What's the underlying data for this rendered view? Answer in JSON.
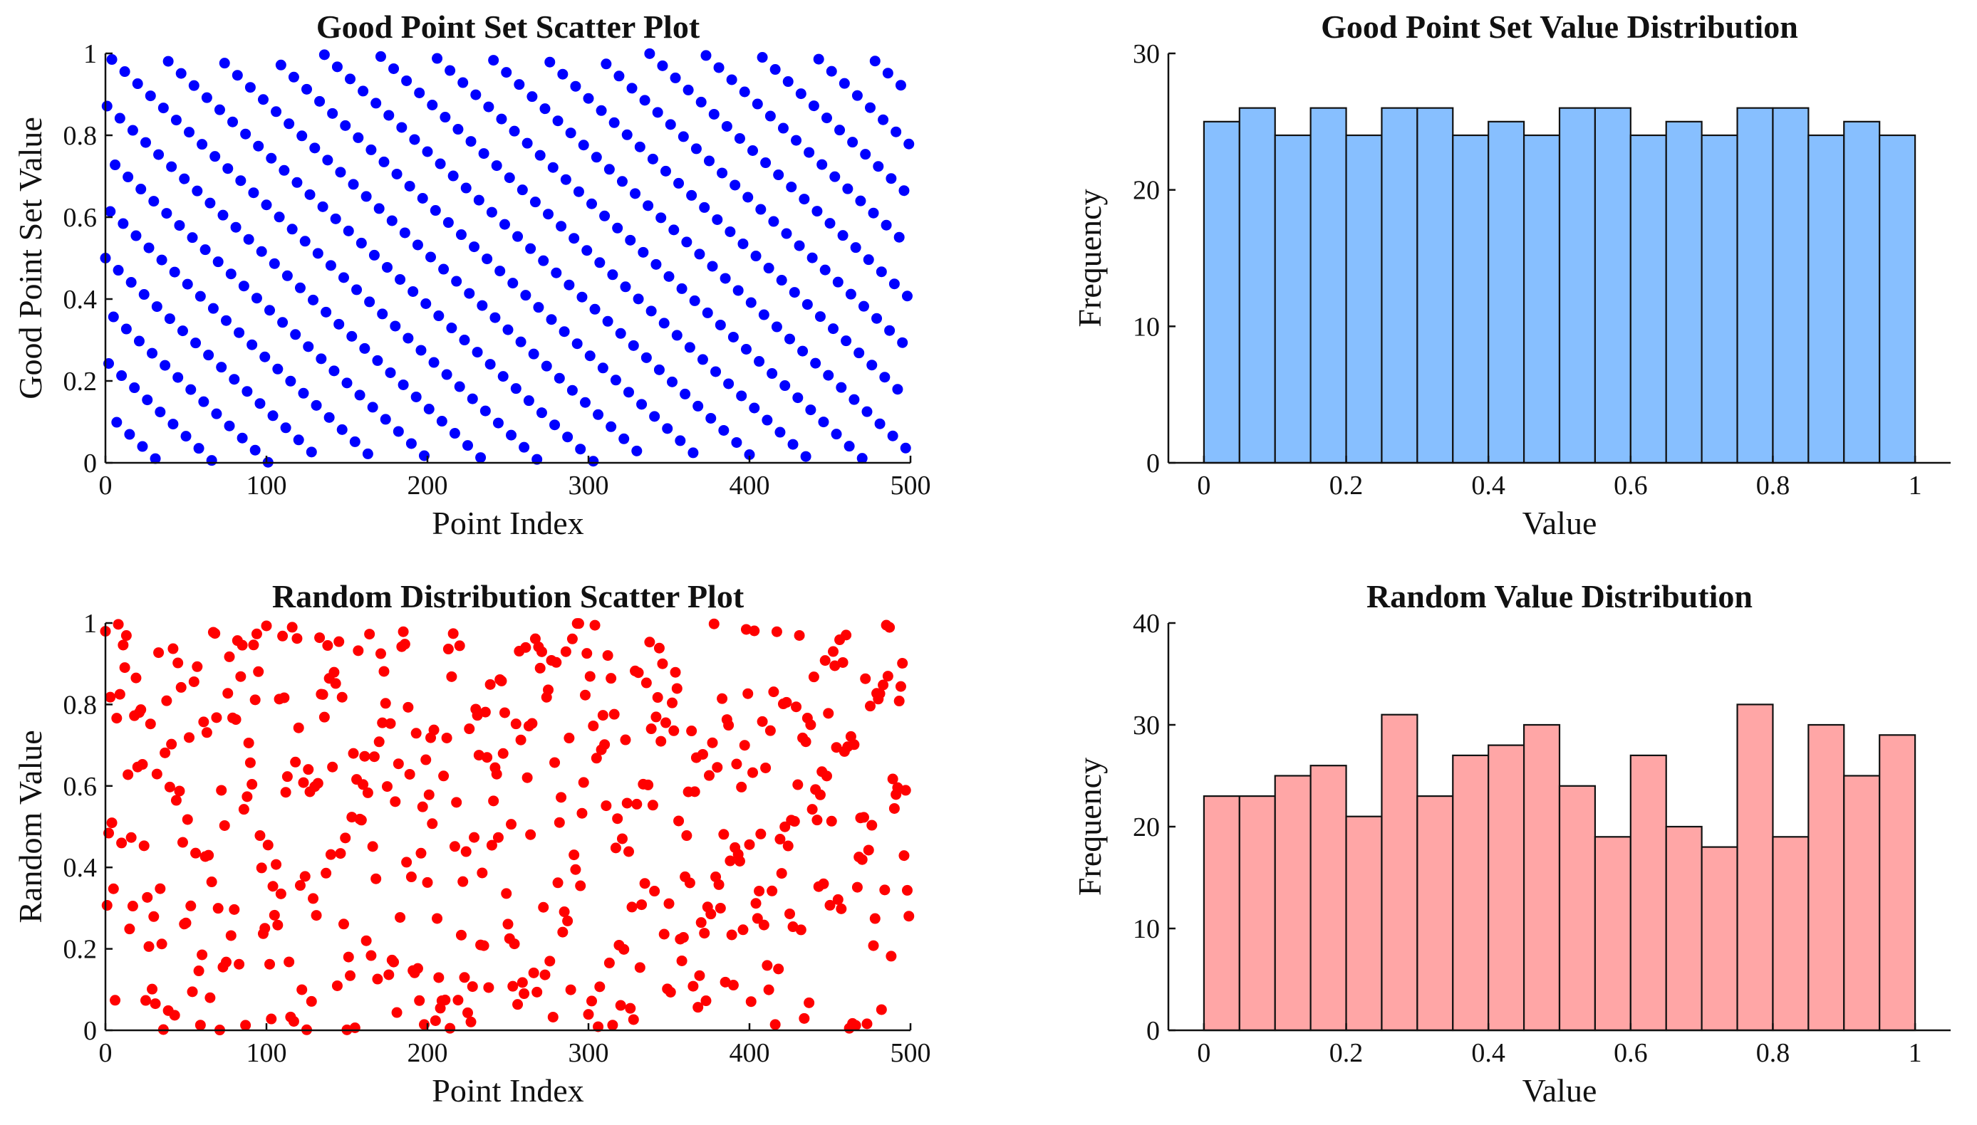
{
  "chart_data": [
    {
      "id": "good-scatter",
      "type": "scatter",
      "title": "Good Point Set Scatter Plot",
      "xlabel": "Point Index",
      "ylabel": "Good Point Set Value",
      "xlim": [
        0,
        500
      ],
      "ylim": [
        0,
        1
      ],
      "xticks": [
        0,
        100,
        200,
        300,
        400,
        500
      ],
      "yticks": [
        0,
        0.2,
        0.4,
        0.6,
        0.8,
        1
      ],
      "color": "#0000ff",
      "series": [
        {
          "name": "Good Point Set",
          "generator": "good-point-set",
          "n": 500,
          "step": 0.3713,
          "phase": 0.5
        }
      ]
    },
    {
      "id": "good-hist",
      "type": "bar",
      "title": "Good Point Set Value Distribution",
      "xlabel": "Value",
      "ylabel": "Frequency",
      "xlim": [
        0,
        1
      ],
      "ylim": [
        0,
        30
      ],
      "xticks": [
        0,
        0.2,
        0.4,
        0.6,
        0.8,
        1
      ],
      "yticks": [
        0,
        10,
        20,
        30
      ],
      "bin_edges_start": 0,
      "bin_width": 0.05,
      "values": [
        25,
        26,
        24,
        26,
        24,
        26,
        26,
        24,
        25,
        24,
        26,
        26,
        24,
        25,
        24,
        26,
        26,
        24,
        25,
        24
      ],
      "color": "#87bfff"
    },
    {
      "id": "random-scatter",
      "type": "scatter",
      "title": "Random Distribution Scatter Plot",
      "xlabel": "Point Index",
      "ylabel": "Random Value",
      "xlim": [
        0,
        500
      ],
      "ylim": [
        0,
        1
      ],
      "xticks": [
        0,
        100,
        200,
        300,
        400,
        500
      ],
      "yticks": [
        0,
        0.2,
        0.4,
        0.6,
        0.8,
        1
      ],
      "color": "#ff0000",
      "series": [
        {
          "name": "Random",
          "generator": "uniform-random",
          "n": 500,
          "seed": 12345
        }
      ]
    },
    {
      "id": "random-hist",
      "type": "bar",
      "title": "Random Value Distribution",
      "xlabel": "Value",
      "ylabel": "Frequency",
      "xlim": [
        0,
        1
      ],
      "ylim": [
        0,
        40
      ],
      "xticks": [
        0,
        0.2,
        0.4,
        0.6,
        0.8,
        1
      ],
      "yticks": [
        0,
        10,
        20,
        30,
        40
      ],
      "bin_edges_start": 0,
      "bin_width": 0.05,
      "values": [
        23,
        23,
        25,
        26,
        21,
        31,
        23,
        27,
        28,
        30,
        24,
        19,
        27,
        20,
        18,
        32,
        19,
        30,
        25,
        29
      ],
      "color": "#ffa6a6"
    }
  ]
}
